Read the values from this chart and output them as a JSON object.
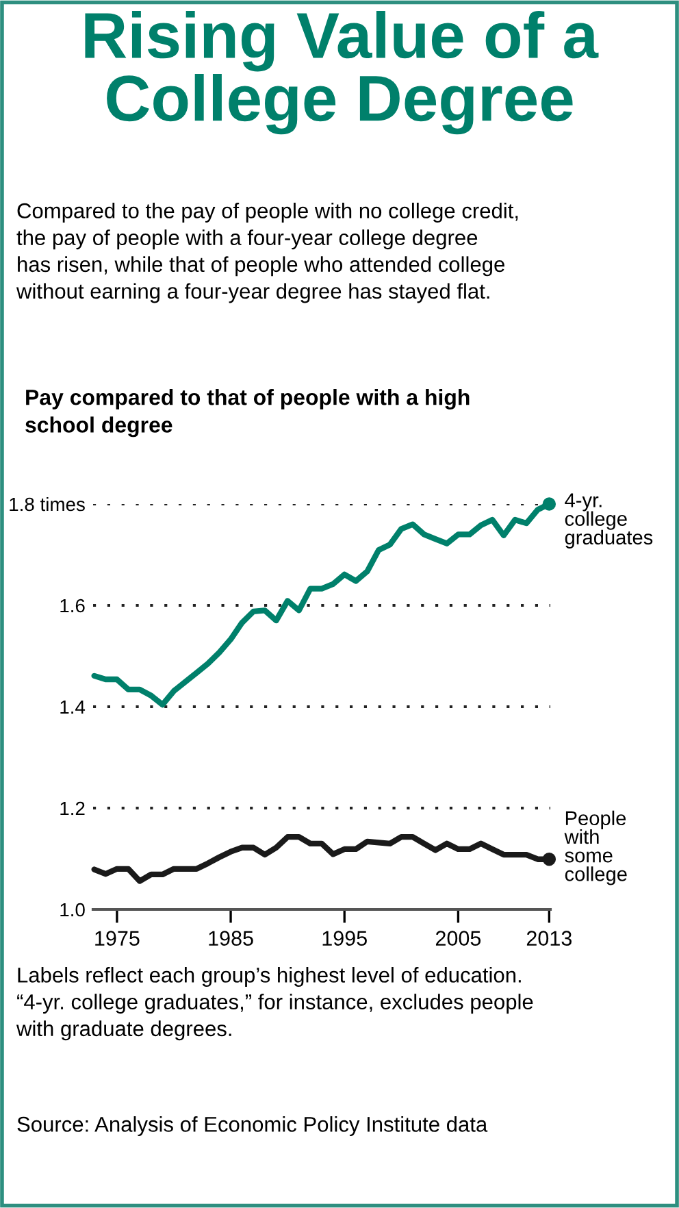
{
  "chart_data": {
    "type": "line",
    "title": "Rising Value of a\nCollege Degree",
    "subtitle": "Compared to the pay of people with no college credit,\nthe pay of people with a four-year college degree\nhas risen, while that of people who attended college\nwithout earning a four-year degree has stayed flat.",
    "ylabel": "Pay compared to that of people with a high\nschool degree",
    "x": [
      1973,
      1974,
      1975,
      1976,
      1977,
      1978,
      1979,
      1980,
      1981,
      1982,
      1983,
      1984,
      1985,
      1986,
      1987,
      1988,
      1989,
      1990,
      1991,
      1992,
      1993,
      1994,
      1995,
      1996,
      1997,
      1998,
      1999,
      2000,
      2001,
      2002,
      2003,
      2004,
      2005,
      2006,
      2007,
      2008,
      2009,
      2010,
      2011,
      2012,
      2013
    ],
    "series": [
      {
        "name": "4-yr.\ncollege\ngraduates",
        "color": "#00806b",
        "values": [
          1.461,
          1.454,
          1.454,
          1.434,
          1.434,
          1.422,
          1.404,
          1.431,
          1.449,
          1.467,
          1.485,
          1.507,
          1.533,
          1.566,
          1.588,
          1.59,
          1.57,
          1.609,
          1.59,
          1.633,
          1.633,
          1.642,
          1.661,
          1.648,
          1.667,
          1.709,
          1.72,
          1.751,
          1.76,
          1.74,
          1.731,
          1.722,
          1.74,
          1.74,
          1.758,
          1.769,
          1.738,
          1.769,
          1.762,
          1.789,
          1.8
        ]
      },
      {
        "name": "People\nwith\nsome\ncollege",
        "color": "#1a1a1a",
        "values": [
          1.079,
          1.07,
          1.08,
          1.08,
          1.056,
          1.069,
          1.069,
          1.08,
          1.08,
          1.08,
          1.091,
          1.103,
          1.114,
          1.122,
          1.122,
          1.108,
          1.122,
          1.143,
          1.143,
          1.13,
          1.13,
          1.109,
          1.119,
          1.119,
          1.134,
          1.132,
          1.13,
          1.143,
          1.143,
          1.13,
          1.117,
          1.13,
          1.119,
          1.119,
          1.13,
          1.119,
          1.108,
          1.108,
          1.108,
          1.099,
          1.099
        ]
      }
    ],
    "xlim": [
      1972.9,
      2013.1
    ],
    "ylim": [
      1.0,
      1.8
    ],
    "xticks": [
      1975,
      1985,
      1995,
      2005,
      2013
    ],
    "yticks": [
      {
        "value": 1.0,
        "label": "1.0"
      },
      1.2,
      1.4,
      1.6,
      {
        "value": 1.8,
        "label": "1.8 times"
      }
    ],
    "grid": "y",
    "line_style": "solid",
    "annotations": [
      "Labels reflect each group’s highest level of education.\n“4-yr. college graduates,” for instance, excludes people\nwith graduate degrees.",
      "Source: Analysis of Economic Policy Institute data"
    ]
  }
}
